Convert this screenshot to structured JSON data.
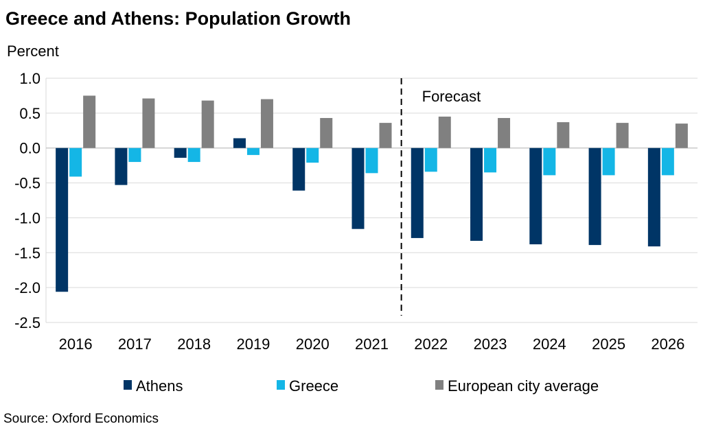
{
  "chart_data": {
    "type": "bar",
    "title": "Greece and Athens: Population Growth",
    "ylabel": "Percent",
    "xlabel": "",
    "ylim": [
      -2.5,
      1.0
    ],
    "yticks": [
      1.0,
      0.5,
      0.0,
      -0.5,
      -1.0,
      -1.5,
      -2.0,
      -2.5
    ],
    "ytick_labels": [
      "1.0",
      "0.5",
      "0.0",
      "-0.5",
      "-1.0",
      "-1.5",
      "-2.0",
      "-2.5"
    ],
    "grid": true,
    "legend_position": "bottom",
    "categories": [
      "2016",
      "2017",
      "2018",
      "2019",
      "2020",
      "2021",
      "2022",
      "2023",
      "2024",
      "2025",
      "2026"
    ],
    "series": [
      {
        "name": "Athens",
        "color": "#003566",
        "values": [
          -2.06,
          -0.53,
          -0.14,
          0.14,
          -0.61,
          -1.16,
          -1.29,
          -1.33,
          -1.38,
          -1.39,
          -1.41
        ]
      },
      {
        "name": "Greece",
        "color": "#14b6e6",
        "values": [
          -0.41,
          -0.2,
          -0.2,
          -0.1,
          -0.21,
          -0.36,
          -0.34,
          -0.35,
          -0.39,
          -0.39,
          -0.39
        ]
      },
      {
        "name": "European city average",
        "color": "#808080",
        "values": [
          0.75,
          0.71,
          0.68,
          0.7,
          0.43,
          0.36,
          0.45,
          0.43,
          0.37,
          0.36,
          0.35
        ]
      }
    ],
    "annotations": {
      "forecast_label": "Forecast",
      "forecast_divider_between": [
        "2021",
        "2022"
      ]
    },
    "source": "Source: Oxford Economics"
  }
}
